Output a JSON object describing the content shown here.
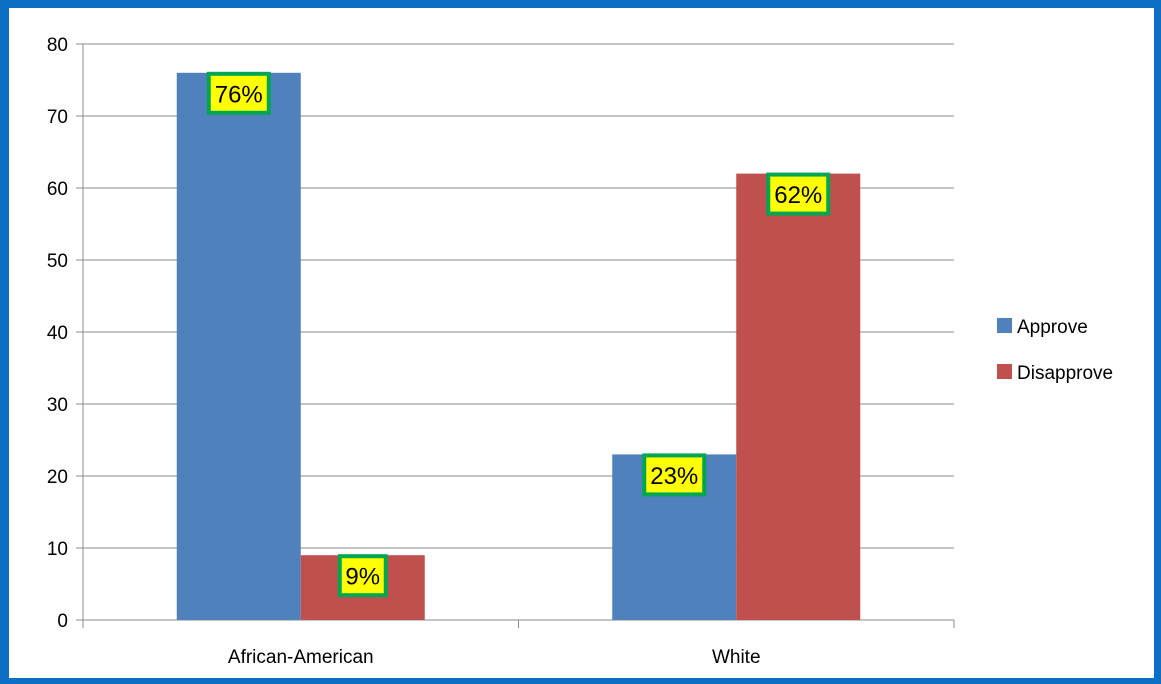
{
  "chart_data": {
    "type": "bar",
    "categories": [
      "African-American",
      "White"
    ],
    "series": [
      {
        "name": "Approve",
        "values": [
          76,
          23
        ],
        "labels": [
          "76%",
          "23%"
        ],
        "color": "#4f81bd"
      },
      {
        "name": "Disapprove",
        "values": [
          9,
          62
        ],
        "labels": [
          "9%",
          "62%"
        ],
        "color": "#c0504d"
      }
    ],
    "ylim": [
      0,
      80
    ],
    "yticks": [
      0,
      10,
      20,
      30,
      40,
      50,
      60,
      70,
      80
    ],
    "grid": true,
    "legend": "right",
    "data_label_fill": "#ffff00",
    "data_label_border": "#00a651",
    "frame_color": "#0b6fc4"
  }
}
